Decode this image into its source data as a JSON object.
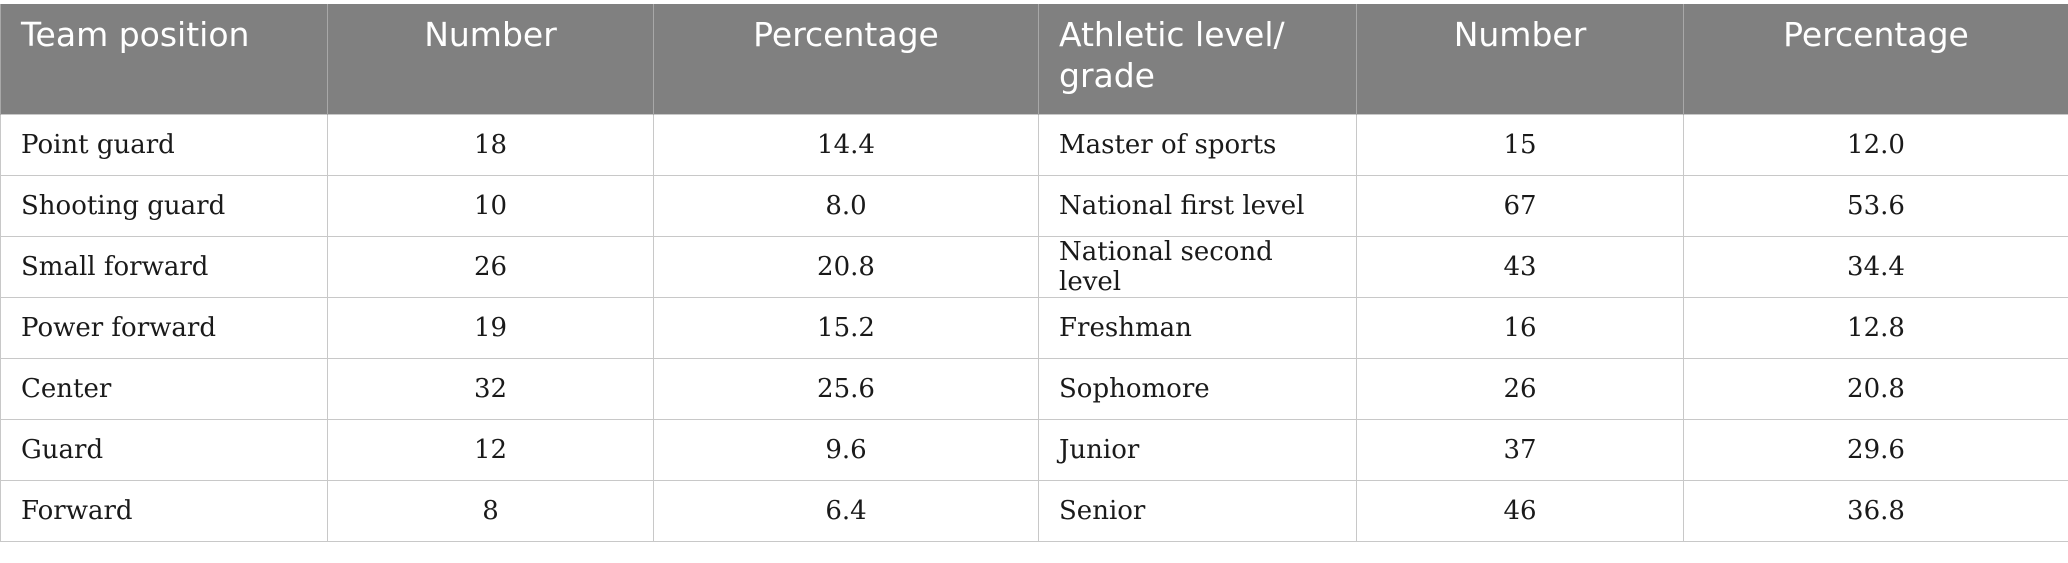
{
  "table": {
    "headers": [
      "Team position",
      "Number",
      "Percentage",
      "Athletic level/ grade",
      "Number",
      "Percentage"
    ],
    "rows": [
      [
        "Point guard",
        "18",
        "14.4",
        "Master of sports",
        "15",
        "12.0"
      ],
      [
        "Shooting guard",
        "10",
        "8.0",
        "National first level",
        "67",
        "53.6"
      ],
      [
        "Small forward",
        "26",
        "20.8",
        "National second level",
        "43",
        "34.4"
      ],
      [
        "Power forward",
        "19",
        "15.2",
        "Freshman",
        "16",
        "12.8"
      ],
      [
        "Center",
        "32",
        "25.6",
        "Sophomore",
        "26",
        "20.8"
      ],
      [
        "Guard",
        "12",
        "9.6",
        "Junior",
        "37",
        "29.6"
      ],
      [
        "Forward",
        "8",
        "6.4",
        "Senior",
        "46",
        "36.8"
      ]
    ]
  },
  "colors": {
    "header_background": "#808080",
    "header_text": "#ffffff",
    "grid_line": "#c8c8c8"
  }
}
